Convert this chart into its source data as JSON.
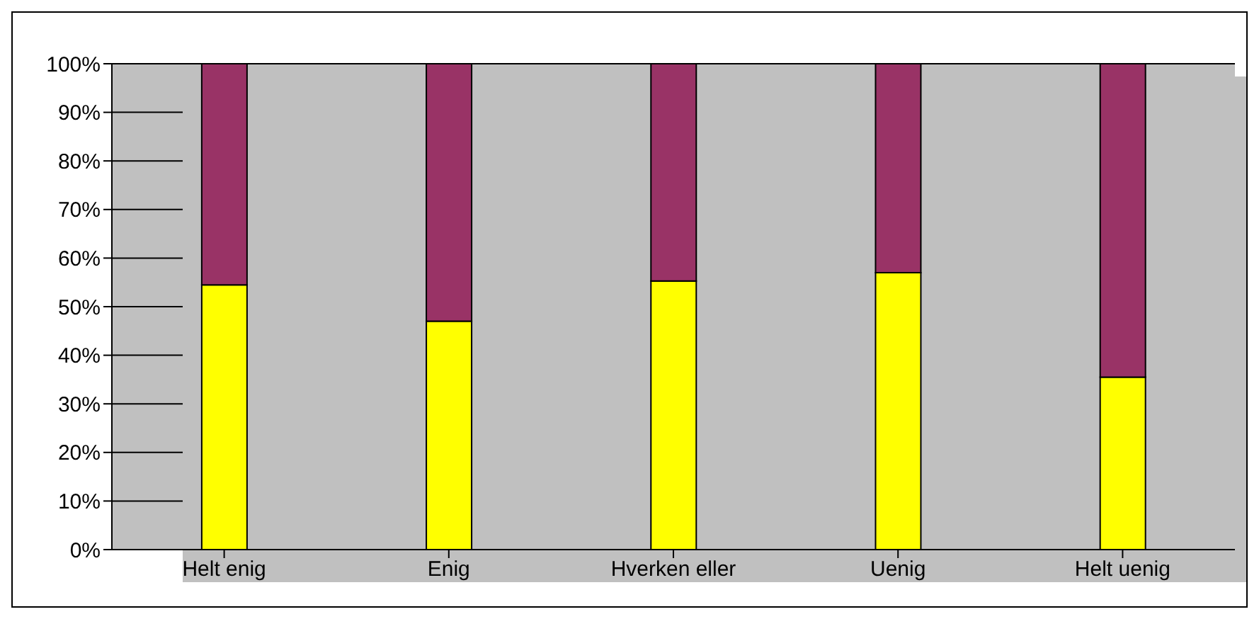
{
  "chart_data": {
    "type": "bar",
    "stacked": true,
    "categories": [
      "Helt enig",
      "Enig",
      "Hverken eller",
      "Uenig",
      "Helt uenig"
    ],
    "series": [
      {
        "color": "#ffff00",
        "values": [
          54.5,
          47,
          55.3,
          57,
          35.5
        ]
      },
      {
        "color": "#993366",
        "values": [
          45.5,
          53,
          44.7,
          43,
          64.5
        ]
      }
    ],
    "ylim": [
      0,
      100
    ],
    "yticks": [
      {
        "value": 0,
        "label": "0%"
      },
      {
        "value": 10,
        "label": "10%"
      },
      {
        "value": 20,
        "label": "20%"
      },
      {
        "value": 30,
        "label": "30%"
      },
      {
        "value": 40,
        "label": "40%"
      },
      {
        "value": 50,
        "label": "50%"
      },
      {
        "value": 60,
        "label": "60%"
      },
      {
        "value": 70,
        "label": "70%"
      },
      {
        "value": 80,
        "label": "80%"
      },
      {
        "value": 90,
        "label": "90%"
      },
      {
        "value": 100,
        "label": "100%"
      }
    ],
    "grid": "y",
    "legend": false
  }
}
